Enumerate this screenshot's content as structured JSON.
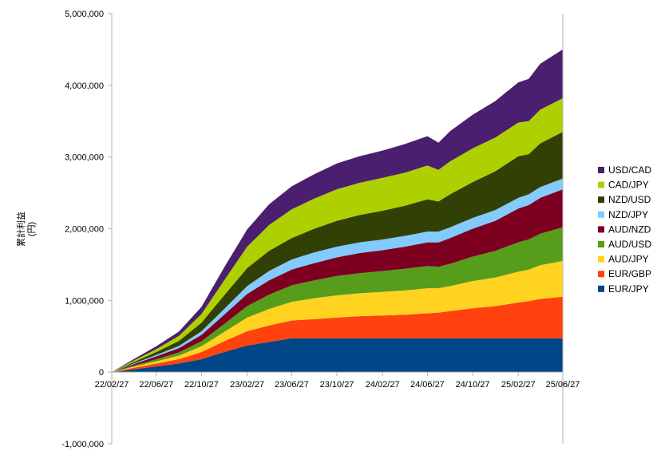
{
  "chart_data": {
    "type": "area",
    "stacked": true,
    "ylabel": "累計利益\n(円)",
    "ylim": [
      -1000000,
      5000000
    ],
    "y_ticks": [
      "5,000,000",
      "4,000,000",
      "3,000,000",
      "2,000,000",
      "1,000,000",
      "0",
      "-1,000,000"
    ],
    "y_tick_values": [
      5000000,
      4000000,
      3000000,
      2000000,
      1000000,
      0,
      -1000000
    ],
    "x_ticks": [
      "22/02/27",
      "22/06/27",
      "22/10/27",
      "23/02/27",
      "23/06/27",
      "23/10/27",
      "24/02/27",
      "24/06/27",
      "24/10/27",
      "25/02/27",
      "25/06/27"
    ],
    "x": [
      "22/02/27",
      "22/04/27",
      "22/06/27",
      "22/08/27",
      "22/10/27",
      "22/12/27",
      "23/02/27",
      "23/04/27",
      "23/06/27",
      "23/08/27",
      "23/10/27",
      "23/12/27",
      "24/02/27",
      "24/04/27",
      "24/06/27",
      "24/07/27",
      "24/08/27",
      "24/10/27",
      "24/12/27",
      "25/02/27",
      "25/03/27",
      "25/04/27",
      "25/06/27"
    ],
    "grid": false,
    "legend_position": "right",
    "series": [
      {
        "name": "EUR/JPY",
        "color": "#004586",
        "values": [
          0,
          40000,
          80000,
          120000,
          180000,
          280000,
          370000,
          420000,
          470000,
          470000,
          470000,
          470000,
          470000,
          470000,
          470000,
          470000,
          470000,
          470000,
          470000,
          470000,
          470000,
          470000,
          470000
        ]
      },
      {
        "name": "EUR/GBP",
        "color": "#ff420e",
        "values": [
          0,
          20000,
          40000,
          60000,
          100000,
          150000,
          200000,
          230000,
          250000,
          270000,
          290000,
          310000,
          320000,
          330000,
          350000,
          360000,
          380000,
          420000,
          450000,
          500000,
          520000,
          550000,
          580000
        ]
      },
      {
        "name": "AUD/JPY",
        "color": "#ffd320",
        "values": [
          0,
          15000,
          30000,
          50000,
          80000,
          130000,
          190000,
          230000,
          260000,
          290000,
          310000,
          320000,
          330000,
          340000,
          350000,
          340000,
          350000,
          380000,
          400000,
          430000,
          440000,
          470000,
          500000
        ]
      },
      {
        "name": "AUD/USD",
        "color": "#579d1c",
        "values": [
          0,
          15000,
          30000,
          45000,
          70000,
          110000,
          160000,
          200000,
          230000,
          250000,
          270000,
          280000,
          290000,
          300000,
          310000,
          300000,
          310000,
          340000,
          370000,
          410000,
          420000,
          440000,
          470000
        ]
      },
      {
        "name": "AUD/NZD",
        "color": "#7e0021",
        "values": [
          0,
          20000,
          40000,
          60000,
          90000,
          130000,
          170000,
          200000,
          220000,
          240000,
          260000,
          280000,
          290000,
          310000,
          330000,
          340000,
          360000,
          390000,
          420000,
          470000,
          480000,
          500000,
          530000
        ]
      },
      {
        "name": "NZD/JPY",
        "color": "#83caff",
        "values": [
          0,
          10000,
          20000,
          30000,
          50000,
          80000,
          110000,
          130000,
          140000,
          150000,
          150000,
          150000,
          150000,
          150000,
          150000,
          150000,
          150000,
          150000,
          150000,
          150000,
          150000,
          150000,
          150000
        ]
      },
      {
        "name": "NZD/USD",
        "color": "#314004",
        "values": [
          0,
          20000,
          40000,
          70000,
          120000,
          190000,
          250000,
          280000,
          300000,
          330000,
          360000,
          380000,
          400000,
          420000,
          450000,
          420000,
          460000,
          500000,
          540000,
          580000,
          560000,
          610000,
          650000
        ]
      },
      {
        "name": "CAD/JPY",
        "color": "#aecf00",
        "values": [
          0,
          20000,
          40000,
          70000,
          120000,
          210000,
          300000,
          360000,
          400000,
          420000,
          440000,
          450000,
          460000,
          460000,
          470000,
          440000,
          460000,
          470000,
          470000,
          470000,
          460000,
          470000,
          470000
        ]
      },
      {
        "name": "USD/CAD",
        "color": "#4b1f6f",
        "values": [
          0,
          20000,
          40000,
          60000,
          100000,
          180000,
          240000,
          290000,
          320000,
          340000,
          360000,
          370000,
          380000,
          400000,
          410000,
          380000,
          420000,
          470000,
          510000,
          560000,
          590000,
          640000,
          680000
        ]
      }
    ]
  }
}
